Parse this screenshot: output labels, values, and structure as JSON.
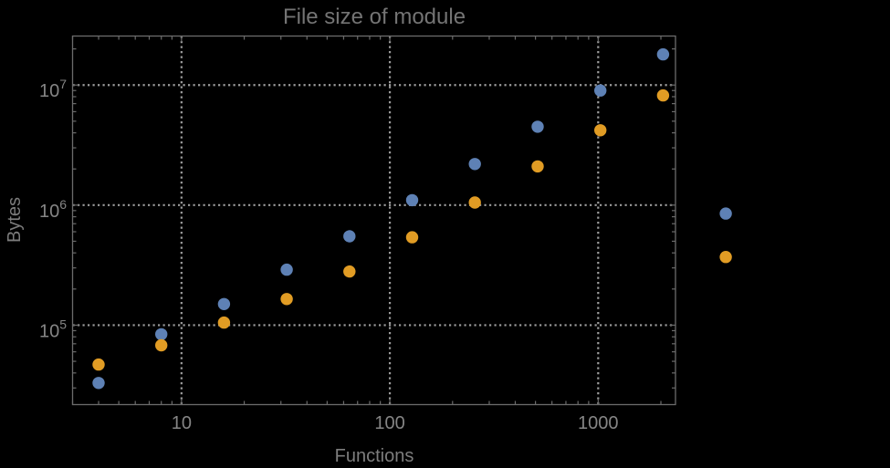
{
  "styles": {
    "background": "#000000",
    "frame_color": "#6b6b6b",
    "grid_color": "#9c9c9c",
    "tick_label_color": "#858585",
    "axis_label_color": "#7d7d7d",
    "title_color": "#747474"
  },
  "chart_data": {
    "type": "scatter",
    "title": "File size of module",
    "xlabel": "Functions",
    "ylabel": "Bytes",
    "x_scale": "log",
    "y_scale": "log",
    "xlim": [
      3,
      2350
    ],
    "ylim": [
      21800,
      25600000
    ],
    "x_major_ticks": [
      10,
      100,
      1000
    ],
    "x_tick_labels": [
      "10",
      "100",
      "1000"
    ],
    "y_major_ticks": [
      100000,
      1000000,
      10000000
    ],
    "y_tick_labels": [
      {
        "base": "10",
        "exp": "5"
      },
      {
        "base": "10",
        "exp": "6"
      },
      {
        "base": "10",
        "exp": "7"
      }
    ],
    "grid": "dotted",
    "legend": "none",
    "x": [
      4,
      8,
      16,
      32,
      64,
      128,
      256,
      512,
      1024,
      2048,
      4096
    ],
    "series": [
      {
        "name": "blue",
        "color": "#5e81b5",
        "values": [
          33000,
          84000,
          150000,
          290000,
          550000,
          1100000,
          2200000,
          4500000,
          9000000,
          18000000,
          850000
        ]
      },
      {
        "name": "orange",
        "color": "#e19c24",
        "values": [
          47000,
          68000,
          105000,
          165000,
          280000,
          540000,
          1050000,
          2100000,
          4200000,
          8200000,
          370000
        ]
      }
    ],
    "note": "points at x=4096 are drawn outside the right edge of the plot frame"
  }
}
